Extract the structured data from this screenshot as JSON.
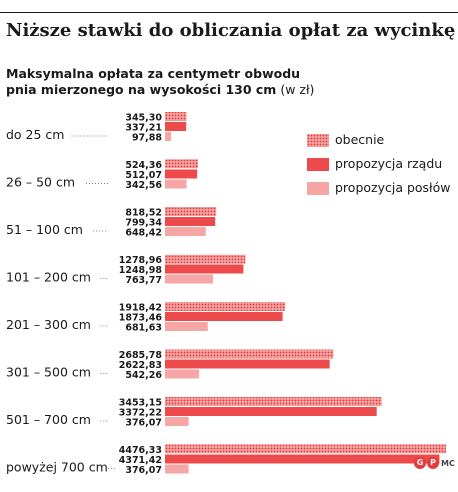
{
  "title": "Niższe stawki do obliczania opłat za wycinkę",
  "subtitle_line1": "Maksymalna opłata za centymetr obwodu",
  "subtitle_line2": "pnia mierzonego na wysokości 130 cm",
  "unit": "(w zł)",
  "colors": {
    "obecnie": "#e83a3a",
    "rzad": "#ed4b4b",
    "poslow": "#f7a6a6",
    "text": "#1a1a1a"
  },
  "logo_text": "MC",
  "chart_data": {
    "type": "bar",
    "orientation": "horizontal",
    "categories": [
      "do 25 cm",
      "26 – 50 cm",
      "51 – 100 cm",
      "101 – 200 cm",
      "201 – 300 cm",
      "301 – 500 cm",
      "501 – 700 cm",
      "powyżej 700 cm"
    ],
    "series": [
      {
        "name": "obecnie",
        "pattern": "dotted",
        "values": [
          345.3,
          524.36,
          818.52,
          1278.96,
          1918.42,
          2685.78,
          3453.15,
          4476.33
        ],
        "labels": [
          "345,30",
          "524,36",
          "818,52",
          "1278,96",
          "1918,42",
          "2685,78",
          "3453,15",
          "4476,33"
        ]
      },
      {
        "name": "propozycja rządu",
        "pattern": "solid",
        "values": [
          337.21,
          512.07,
          799.34,
          1248.98,
          1873.46,
          2622.83,
          3372.22,
          4371.42
        ],
        "labels": [
          "337,21",
          "512,07",
          "799,34",
          "1248,98",
          "1873,46",
          "2622,83",
          "3372,22",
          "4371,42"
        ]
      },
      {
        "name": "propozycja posłów",
        "pattern": "light",
        "values": [
          97.88,
          342.56,
          648.42,
          763.77,
          681.63,
          542.26,
          376.07,
          376.07
        ],
        "labels": [
          "97,88",
          "342,56",
          "648,42",
          "763,77",
          "681,63",
          "542,26",
          "376,07",
          "376,07"
        ]
      }
    ],
    "title": "Niższe stawki do obliczania opłat za wycinkę",
    "xlabel": "",
    "ylabel": "",
    "xlim": [
      0,
      4476.33
    ],
    "grid": false,
    "legend_position": "top-right"
  }
}
